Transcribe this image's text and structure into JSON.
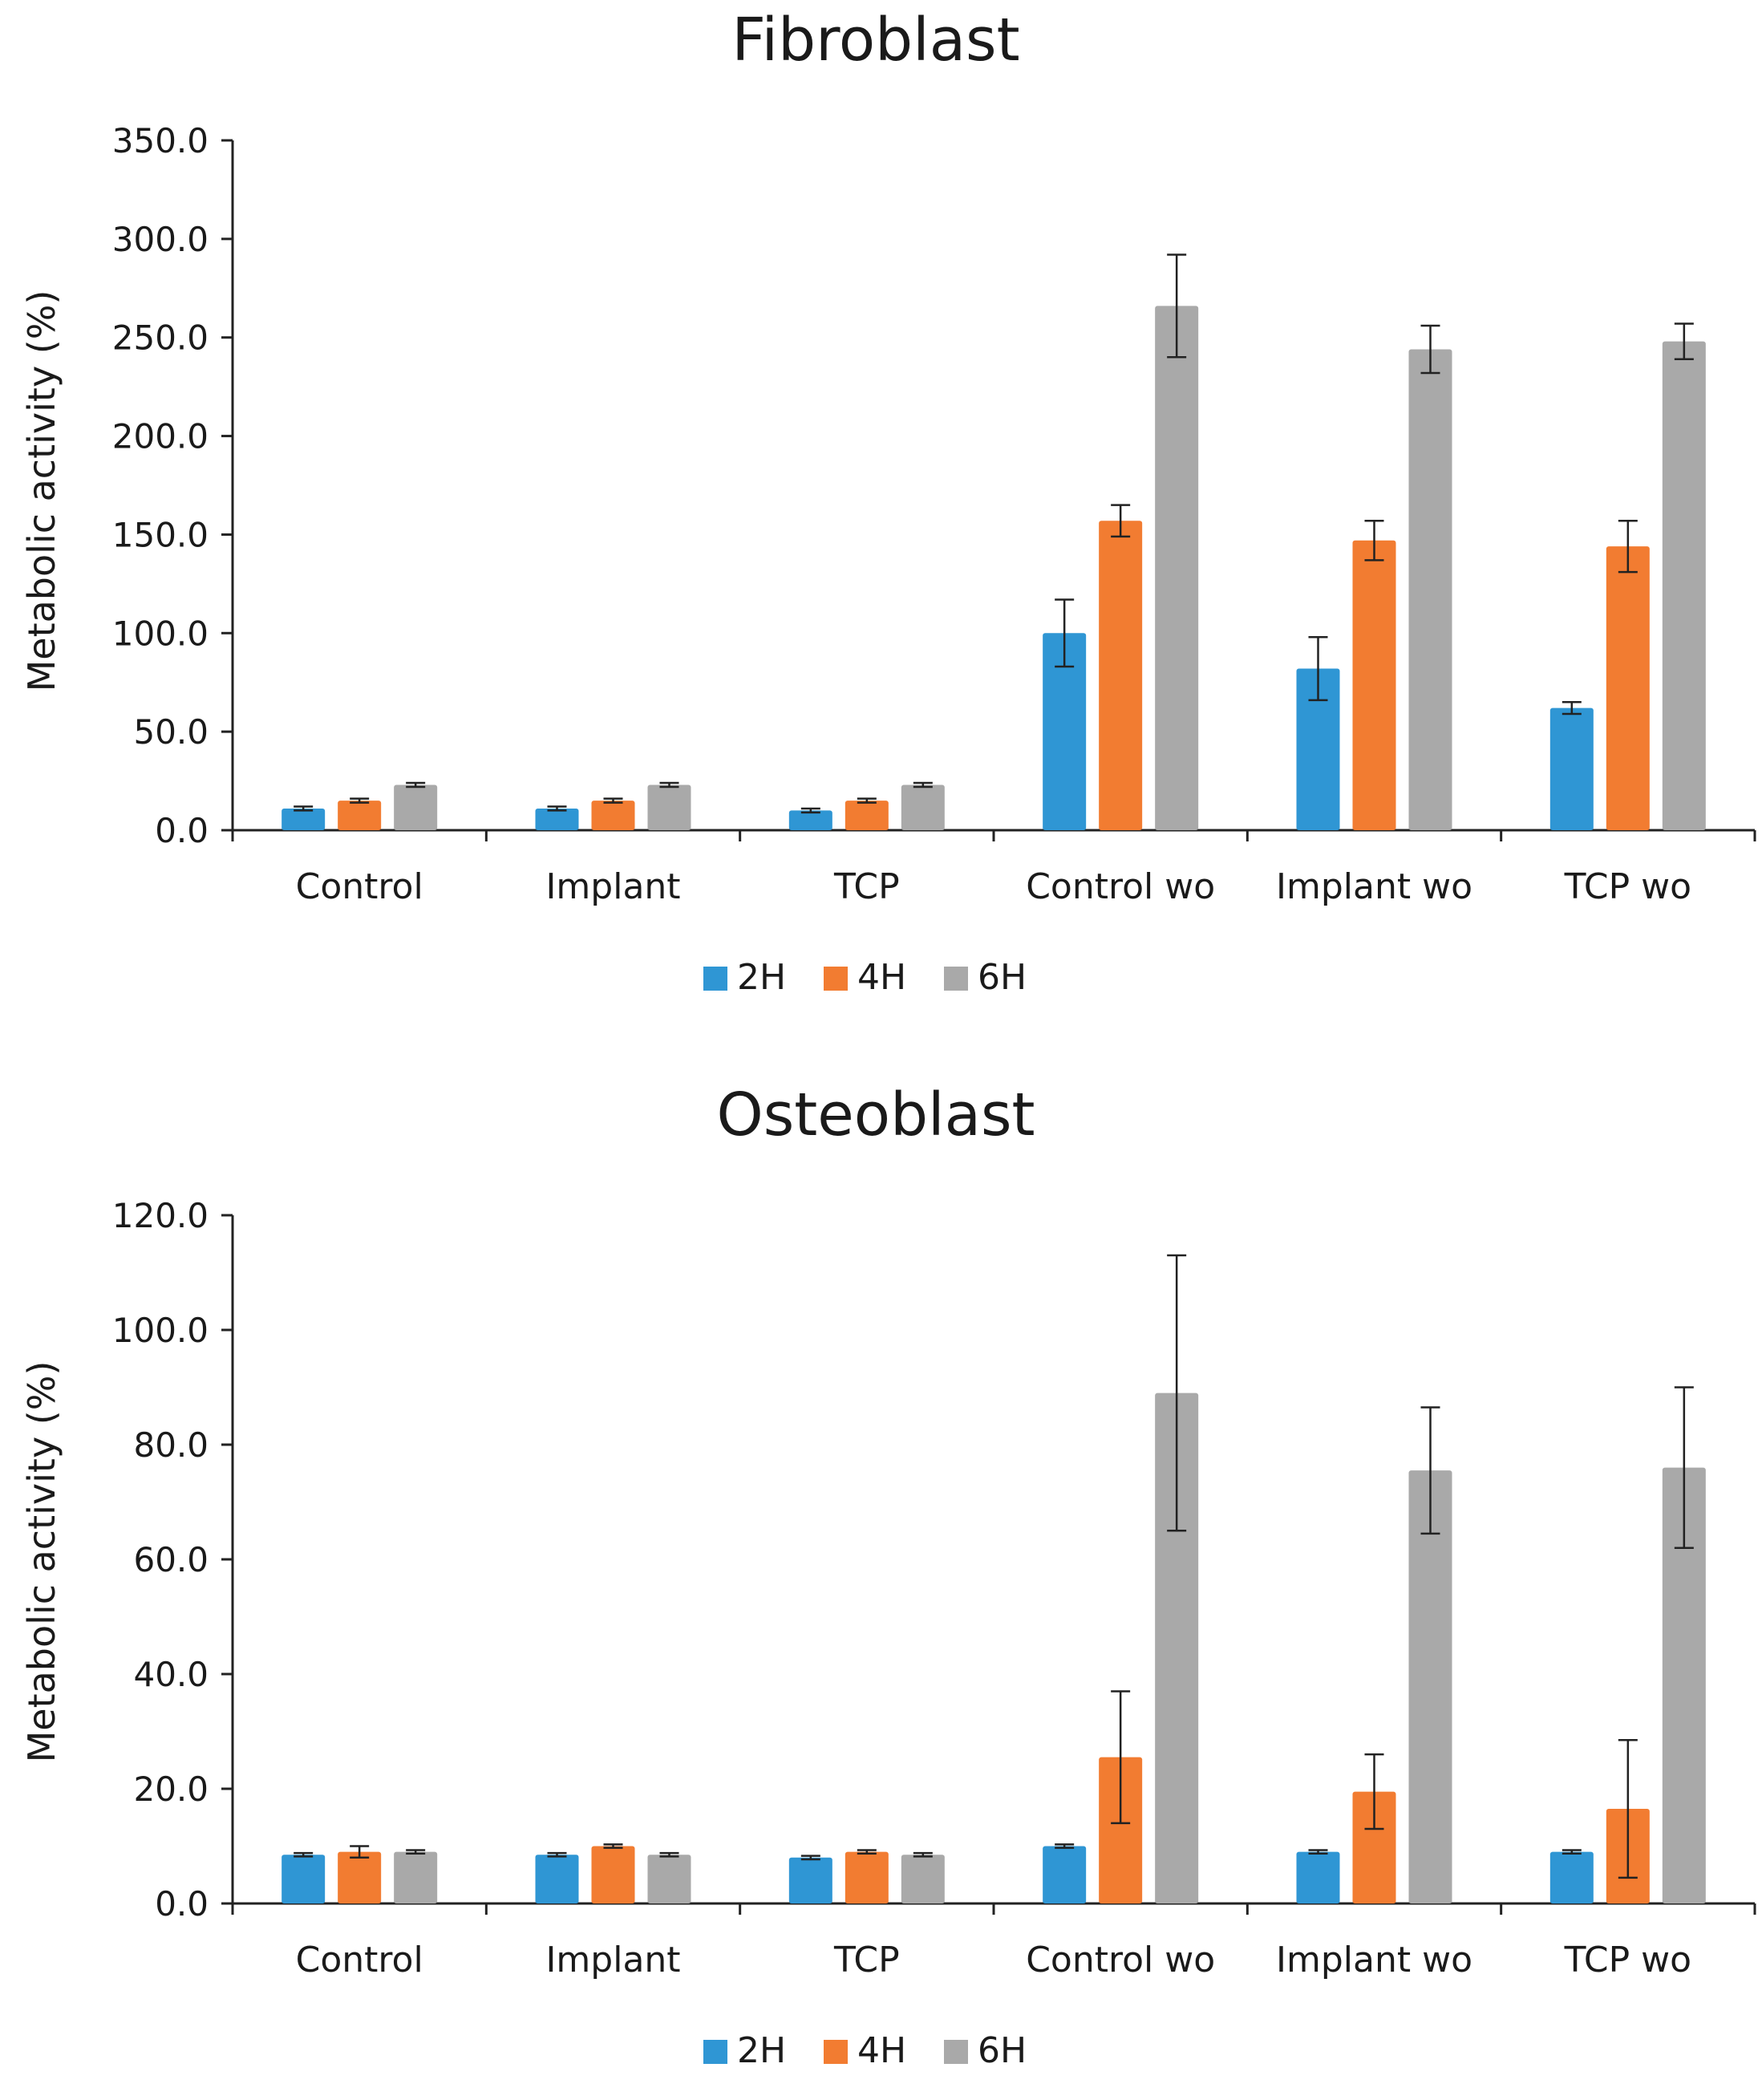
{
  "colors": {
    "2H": "#2f96d4",
    "4H": "#f27c31",
    "6H": "#a9a9a9"
  },
  "chart_data": [
    {
      "type": "bar",
      "title": "Fibroblast",
      "xlabel": "",
      "ylabel": "Metabolic activity (%)",
      "ylim": [
        0,
        350
      ],
      "yticks": [
        0,
        50,
        100,
        150,
        200,
        250,
        300,
        350
      ],
      "ytick_labels": [
        "0.0",
        "50.0",
        "100.0",
        "150.0",
        "200.0",
        "250.0",
        "300.0",
        "350.0"
      ],
      "categories": [
        "Control",
        "Implant",
        "TCP",
        "Control wo",
        "Implant wo",
        "TCP wo"
      ],
      "series": [
        {
          "name": "2H",
          "values": [
            11,
            11,
            10,
            100,
            82,
            62
          ],
          "errors": [
            1,
            1,
            1,
            17,
            16,
            3
          ]
        },
        {
          "name": "4H",
          "values": [
            15,
            15,
            15,
            157,
            147,
            144
          ],
          "errors": [
            1,
            1,
            1,
            8,
            10,
            13
          ]
        },
        {
          "name": "6H",
          "values": [
            23,
            23,
            23,
            266,
            244,
            248
          ],
          "errors": [
            1,
            1,
            1,
            26,
            12,
            9
          ]
        }
      ],
      "legend": [
        "2H",
        "4H",
        "6H"
      ],
      "legend_position": "bottom"
    },
    {
      "type": "bar",
      "title": "Osteoblast",
      "xlabel": "",
      "ylabel": "Metabolic activity (%)",
      "ylim": [
        0,
        120
      ],
      "yticks": [
        0,
        20,
        40,
        60,
        80,
        100,
        120
      ],
      "ytick_labels": [
        "0.0",
        "20.0",
        "40.0",
        "60.0",
        "80.0",
        "100.0",
        "120.0"
      ],
      "categories": [
        "Control",
        "Implant",
        "TCP",
        "Control wo",
        "Implant wo",
        "TCP wo"
      ],
      "series": [
        {
          "name": "2H",
          "values": [
            8.5,
            8.5,
            8.0,
            10.0,
            9.0,
            9.0
          ],
          "errors": [
            0.3,
            0.3,
            0.3,
            0.3,
            0.3,
            0.3
          ]
        },
        {
          "name": "4H",
          "values": [
            9.0,
            10.0,
            9.0,
            25.5,
            19.5,
            16.5
          ],
          "errors": [
            1.0,
            0.3,
            0.3,
            11.5,
            6.5,
            12.0
          ]
        },
        {
          "name": "6H",
          "values": [
            9.0,
            8.5,
            8.5,
            89.0,
            75.5,
            76.0
          ],
          "errors": [
            0.3,
            0.3,
            0.3,
            24.0,
            11.0,
            14.0
          ]
        }
      ],
      "legend": [
        "2H",
        "4H",
        "6H"
      ],
      "legend_position": "bottom"
    }
  ]
}
